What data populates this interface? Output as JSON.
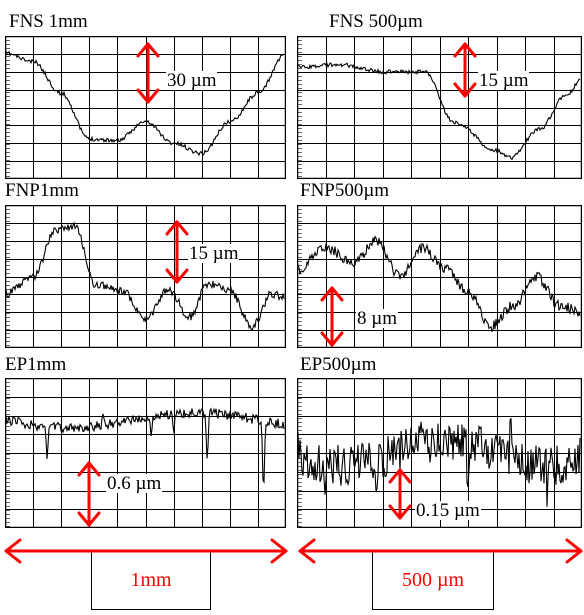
{
  "panels": [
    {
      "id": "fns1mm",
      "title": "FNS 1mm",
      "scale_label": "30 µm"
    },
    {
      "id": "fns500",
      "title": "FNS 500µm",
      "scale_label": "15 µm"
    },
    {
      "id": "fnp1mm",
      "title": "FNP1mm",
      "scale_label": "15 µm"
    },
    {
      "id": "fnp500",
      "title": "FNP500µm",
      "scale_label": "8 µm"
    },
    {
      "id": "ep1mm",
      "title": "EP1mm",
      "scale_label": "0.6 µm"
    },
    {
      "id": "ep500",
      "title": "EP500µm",
      "scale_label": "0.15 µm"
    }
  ],
  "horizontal_scales": [
    {
      "label": "1mm"
    },
    {
      "label": "500 µm"
    }
  ],
  "colors": {
    "arrow": "#ff0000",
    "trace": "#000000",
    "grid": "#000000"
  }
}
